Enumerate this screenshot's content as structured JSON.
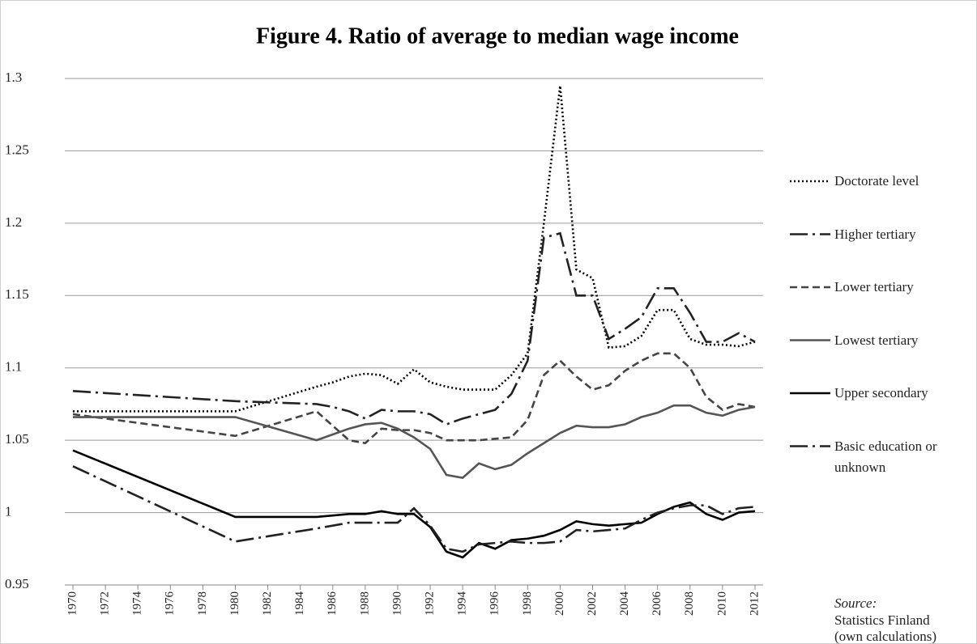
{
  "chart_data": {
    "type": "line",
    "title": "Figure 4. Ratio of  average to median wage income",
    "x": [
      1970,
      1980,
      1985,
      1986,
      1987,
      1988,
      1989,
      1990,
      1991,
      1992,
      1993,
      1994,
      1995,
      1996,
      1997,
      1998,
      1999,
      2000,
      2001,
      2002,
      2003,
      2004,
      2005,
      2006,
      2007,
      2008,
      2009,
      2010,
      2011,
      2012
    ],
    "series": [
      {
        "name": "Doctorate level",
        "color": "#000000",
        "dash": "2 3",
        "values": [
          1.07,
          1.07,
          1.087,
          1.09,
          1.094,
          1.096,
          1.095,
          1.089,
          1.099,
          1.09,
          1.087,
          1.085,
          1.085,
          1.085,
          1.095,
          1.11,
          1.2,
          1.295,
          1.168,
          1.162,
          1.114,
          1.115,
          1.122,
          1.14,
          1.14,
          1.12,
          1.116,
          1.116,
          1.115,
          1.118
        ]
      },
      {
        "name": "Higher tertiary",
        "color": "#222222",
        "dash": "22 6 3 6",
        "values": [
          1.084,
          1.077,
          1.075,
          1.073,
          1.07,
          1.065,
          1.071,
          1.07,
          1.07,
          1.068,
          1.061,
          1.065,
          1.068,
          1.071,
          1.082,
          1.105,
          1.19,
          1.193,
          1.15,
          1.15,
          1.12,
          1.127,
          1.135,
          1.155,
          1.155,
          1.138,
          1.118,
          1.118,
          1.124,
          1.118
        ]
      },
      {
        "name": "Lower tertiary",
        "color": "#444444",
        "dash": "9 5",
        "values": [
          1.068,
          1.053,
          1.07,
          1.06,
          1.05,
          1.048,
          1.058,
          1.057,
          1.057,
          1.055,
          1.05,
          1.05,
          1.05,
          1.051,
          1.052,
          1.064,
          1.095,
          1.105,
          1.094,
          1.085,
          1.088,
          1.098,
          1.105,
          1.11,
          1.11,
          1.1,
          1.08,
          1.071,
          1.075,
          1.073
        ]
      },
      {
        "name": "Lowest tertiary",
        "color": "#555555",
        "dash": "none",
        "values": [
          1.066,
          1.066,
          1.05,
          1.054,
          1.058,
          1.061,
          1.062,
          1.058,
          1.052,
          1.044,
          1.026,
          1.024,
          1.034,
          1.03,
          1.033,
          1.041,
          1.048,
          1.055,
          1.06,
          1.059,
          1.059,
          1.061,
          1.066,
          1.069,
          1.074,
          1.074,
          1.069,
          1.067,
          1.071,
          1.073
        ]
      },
      {
        "name": "Upper secondary",
        "color": "#000000",
        "dash": "none",
        "values": [
          1.043,
          0.997,
          0.997,
          0.998,
          0.999,
          0.999,
          1.001,
          0.999,
          0.999,
          0.99,
          0.973,
          0.969,
          0.979,
          0.975,
          0.981,
          0.982,
          0.984,
          0.988,
          0.994,
          0.992,
          0.991,
          0.992,
          0.993,
          0.999,
          1.004,
          1.007,
          0.999,
          0.995,
          1.0,
          1.001
        ]
      },
      {
        "name": "Basic education or unknown",
        "color": "#222222",
        "dash": "22 6 3 6",
        "values": [
          1.032,
          0.98,
          0.989,
          0.991,
          0.993,
          0.993,
          0.993,
          0.993,
          1.003,
          0.991,
          0.975,
          0.973,
          0.978,
          0.979,
          0.98,
          0.979,
          0.979,
          0.98,
          0.988,
          0.987,
          0.988,
          0.989,
          0.995,
          1.0,
          1.003,
          1.005,
          1.005,
          0.999,
          1.003,
          1.004
        ]
      }
    ],
    "xlim": [
      1969.5,
      2012.5
    ],
    "xticks": [
      1970,
      1972,
      1974,
      1976,
      1978,
      1980,
      1982,
      1984,
      1986,
      1988,
      1990,
      1992,
      1994,
      1996,
      1998,
      2000,
      2002,
      2004,
      2006,
      2008,
      2010,
      2012
    ],
    "ylim": [
      0.95,
      1.3
    ],
    "yticks": [
      0.95,
      1,
      1.05,
      1.1,
      1.15,
      1.2,
      1.25,
      1.3
    ],
    "grid": true,
    "legend": "right",
    "source_label": "Source:",
    "source_text": [
      "Statistics Finland",
      "(own calculations)"
    ]
  }
}
